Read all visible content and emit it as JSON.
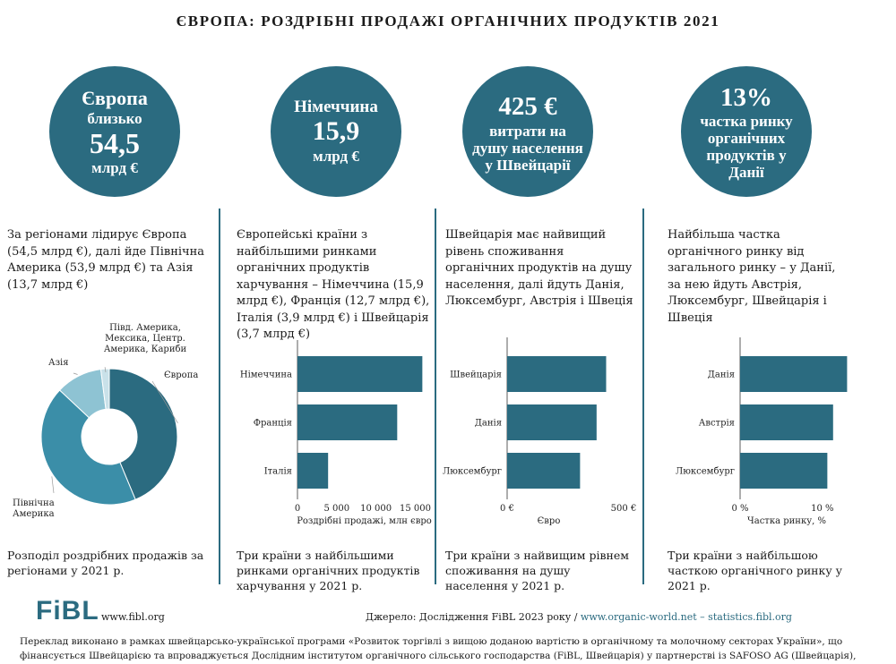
{
  "title": "ЄВРОПА: РОЗДРІБНІ ПРОДАЖІ ОРГАНІЧНИХ ПРОДУКТІВ 2021",
  "colors": {
    "accent": "#2b6b80",
    "teal": "#3b8ea8",
    "light": "#8ec3d3",
    "pale": "#c9e1e9"
  },
  "circles": [
    {
      "l1": "Європа",
      "l2": "близько",
      "l3": "54,5",
      "l4": "млрд €"
    },
    {
      "l1": "Німеччина",
      "l2": "15,9",
      "l3": "млрд €"
    },
    {
      "l1": "425 €",
      "l2": "витрати на",
      "l3": "душу населення",
      "l4": "у Швейцарії"
    },
    {
      "l1": "13%",
      "l2": "частка ринку",
      "l3": "органічних",
      "l4": "продуктів у",
      "l5": "Данії"
    }
  ],
  "descriptions": [
    "За регіонами лідирує Європа (54,5 млрд €), далі йде Північна Америка (53,9 млрд €) та Азія (13,7 млрд €)",
    "Європейські країни з найбільшими ринками органічних продуктів харчування – Німеччина (15,9 млрд €), Франція (12,7 млрд €), Італія (3,9 млрд €) і Швейцарія (3,7 млрд €)",
    "Швейцарія має найвищий рівень споживання органічних продуктів на душу населення, далі йдуть Данія, Люксембург, Австрія і Швеція",
    "Найбільша частка органічного ринку від загального ринку – у Данії, за нею йдуть Австрія, Люксембург, Швейцарія і Швеція"
  ],
  "captions": [
    "Розподіл роздрібних продажів за регіонами у 2021 р.",
    "Три країни з найбільшими ринками органічних продуктів харчування у 2021 р.",
    "Три країни з найвищим рівнем споживання на душу населення у 2021 р.",
    "Три країни з найбільшою часткою органічного ринку у 2021 р."
  ],
  "chart_data": [
    {
      "type": "pie",
      "title": "Розподіл роздрібних продажів за регіонами у 2021 р.",
      "categories": [
        "Європа",
        "Північна Америка",
        "Азія",
        "Півд. Америка, Мексика, Центр. Америка, Кариби"
      ],
      "label_lines": [
        [
          "Європа"
        ],
        [
          "Північна",
          "Америка"
        ],
        [
          "Азія"
        ],
        [
          "Півд. Америка,",
          "Мексика, Центр.",
          "Америка, Кариби"
        ]
      ],
      "values": [
        54.5,
        53.9,
        13.7,
        2.5
      ],
      "colors": [
        "#2b6b80",
        "#3b8ea8",
        "#8ec3d3",
        "#c9e1e9"
      ]
    },
    {
      "type": "bar",
      "orientation": "horizontal",
      "categories": [
        "Німеччина",
        "Франція",
        "Італія"
      ],
      "values": [
        15900,
        12700,
        3900
      ],
      "xlim": [
        0,
        17000
      ],
      "ticks": [
        0,
        5000,
        10000,
        15000
      ],
      "tick_labels": [
        "0",
        "5 000",
        "10 000",
        "15 000"
      ],
      "xlabel": "Роздрібні продажі, млн євро"
    },
    {
      "type": "bar",
      "orientation": "horizontal",
      "categories": [
        "Швейцарія",
        "Данія",
        "Люксембург"
      ],
      "values": [
        425,
        384,
        313
      ],
      "xlim": [
        0,
        550
      ],
      "ticks": [
        0,
        500
      ],
      "tick_labels": [
        "0 €",
        "500 €"
      ],
      "xlabel": "Євро"
    },
    {
      "type": "bar",
      "orientation": "horizontal",
      "categories": [
        "Данія",
        "Австрія",
        "Люксембург"
      ],
      "values": [
        13,
        11.3,
        10.6
      ],
      "xlim": [
        0,
        13.5
      ],
      "ticks": [
        0,
        10
      ],
      "tick_labels": [
        "0 %",
        "10 %"
      ],
      "xlabel": "Частка ринку, %"
    }
  ],
  "footer": {
    "logo": "FiBL",
    "site": "www.fibl.org",
    "source_prefix": "Джерело: Дослідження FiBL 2023 року /",
    "source_link": "www.organic-world.net – statistics.fibl.org",
    "note": "Переклад виконано в рамках швейцарсько-української програми «Розвиток торгівлі з вищою доданою вартістю в органічному та молочному секторах України», що фінансується Швейцарією та впроваджується Дослідним інститутом органічного сільського господарства (FiBL, Швейцарія) у партнерстві із SAFOSO AG (Швейцарія), www.qftp.org"
  }
}
